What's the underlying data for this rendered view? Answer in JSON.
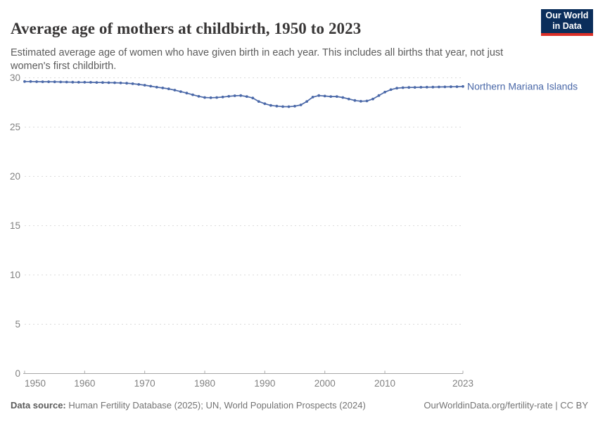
{
  "header": {
    "title": "Average age of mothers at childbirth, 1950 to 2023",
    "subtitle": "Estimated average age of women who have given birth in each year. This includes all births that year, not just women's first childbirth.",
    "logo": {
      "line1": "Our World",
      "line2": "in Data"
    }
  },
  "footer": {
    "source_label": "Data source:",
    "source_text": " Human Fertility Database (2025); UN, World Population Prospects (2024)",
    "attribution": "OurWorldinData.org/fertility-rate | CC BY"
  },
  "colors": {
    "line": "#4a68a8",
    "title": "#383636",
    "subtitle": "#5b5b5b",
    "axis_text": "#818181",
    "gridline": "#dcdcdc",
    "axis_line": "#a8a8a8",
    "logo_bg": "#0b2e5b",
    "logo_red": "#dc2f27"
  },
  "chart_data": {
    "type": "line",
    "title": "Average age of mothers at childbirth, 1950 to 2023",
    "ylabel": "",
    "xlabel": "",
    "xlim": [
      1950,
      2023
    ],
    "ylim": [
      0,
      30
    ],
    "grid": "dashed-horizontal",
    "legend": "line-end-label",
    "xticks": [
      1950,
      1960,
      1970,
      1980,
      1990,
      2000,
      2010,
      2023
    ],
    "yticks": [
      0,
      5,
      10,
      15,
      20,
      25,
      30
    ],
    "years": [
      1950,
      1951,
      1952,
      1953,
      1954,
      1955,
      1956,
      1957,
      1958,
      1959,
      1960,
      1961,
      1962,
      1963,
      1964,
      1965,
      1966,
      1967,
      1968,
      1969,
      1970,
      1971,
      1972,
      1973,
      1974,
      1975,
      1976,
      1977,
      1978,
      1979,
      1980,
      1981,
      1982,
      1983,
      1984,
      1985,
      1986,
      1987,
      1988,
      1989,
      1990,
      1991,
      1992,
      1993,
      1994,
      1995,
      1996,
      1997,
      1998,
      1999,
      2000,
      2001,
      2002,
      2003,
      2004,
      2005,
      2006,
      2007,
      2008,
      2009,
      2010,
      2011,
      2012,
      2013,
      2014,
      2015,
      2016,
      2017,
      2018,
      2019,
      2020,
      2021,
      2022,
      2023
    ],
    "series": [
      {
        "name": "Northern Mariana Islands",
        "values": [
          29.62,
          29.62,
          29.61,
          29.6,
          29.6,
          29.59,
          29.58,
          29.57,
          29.56,
          29.55,
          29.55,
          29.54,
          29.53,
          29.52,
          29.51,
          29.5,
          29.48,
          29.45,
          29.4,
          29.33,
          29.25,
          29.15,
          29.05,
          28.97,
          28.88,
          28.75,
          28.6,
          28.45,
          28.28,
          28.12,
          28.0,
          27.98,
          28.0,
          28.05,
          28.12,
          28.18,
          28.2,
          28.1,
          27.95,
          27.6,
          27.37,
          27.2,
          27.13,
          27.08,
          27.07,
          27.12,
          27.25,
          27.6,
          28.04,
          28.2,
          28.15,
          28.1,
          28.1,
          28.0,
          27.85,
          27.7,
          27.62,
          27.65,
          27.85,
          28.2,
          28.55,
          28.8,
          28.95,
          29.0,
          29.02,
          29.03,
          29.04,
          29.05,
          29.06,
          29.07,
          29.08,
          29.09,
          29.1,
          29.12
        ]
      }
    ]
  }
}
